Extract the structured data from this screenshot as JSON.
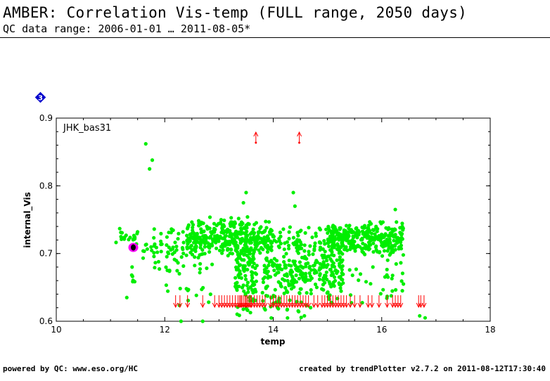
{
  "header": {
    "title": "AMBER: Correlation Vis-temp (FULL range, 2050 days)",
    "subtitle": "QC data range: 2006-01-01 … 2011-08-05*"
  },
  "badge": {
    "text": "3",
    "color": "#0000cc"
  },
  "footer": {
    "left": "powered by QC: www.eso.org/HC",
    "right": "created by trendPlotter v2.7.2 on 2011-08-12T17:30:40"
  },
  "chart_data": {
    "type": "scatter",
    "panel_label": "JHK_bas31",
    "xlabel": "temp",
    "ylabel": "internal_Vis",
    "xlim": [
      10,
      18
    ],
    "ylim": [
      0.6,
      0.9
    ],
    "x_ticks": [
      10,
      12,
      14,
      16,
      18
    ],
    "y_ticks": [
      0.6,
      0.7,
      0.8,
      0.9
    ],
    "grid": false,
    "colors": {
      "points": "#00ee00",
      "out_of_range": "#ff0000",
      "highlight": "#ff00ff",
      "latest": "#000000"
    },
    "highlight_point": {
      "x": 11.42,
      "y": 0.709
    },
    "upper_outliers_x": [
      13.68,
      14.48
    ],
    "lower_outliers_x": [
      12.2,
      12.28,
      12.42,
      12.7,
      12.92,
      13.0,
      13.05,
      13.1,
      13.15,
      13.2,
      13.25,
      13.3,
      13.35,
      13.38,
      13.4,
      13.42,
      13.45,
      13.48,
      13.5,
      13.52,
      13.55,
      13.58,
      13.6,
      13.65,
      13.7,
      13.75,
      13.8,
      13.85,
      13.95,
      14.0,
      14.05,
      14.1,
      14.15,
      14.2,
      14.25,
      14.3,
      14.35,
      14.4,
      14.45,
      14.5,
      14.55,
      14.6,
      14.65,
      14.75,
      14.82,
      14.9,
      14.95,
      15.0,
      15.05,
      15.1,
      15.15,
      15.2,
      15.25,
      15.3,
      15.35,
      15.42,
      15.5,
      15.6,
      15.75,
      15.82,
      15.95,
      16.1,
      16.2,
      16.25,
      16.3,
      16.35,
      16.68,
      16.72,
      16.78
    ],
    "clusters": [
      {
        "x": [
          11.1,
          11.5
        ],
        "y": [
          0.705,
          0.745
        ],
        "n": 22
      },
      {
        "x": [
          11.35,
          11.45
        ],
        "y": [
          0.635,
          0.7
        ],
        "n": 6
      },
      {
        "x": [
          11.6,
          11.85
        ],
        "y": [
          0.66,
          0.745
        ],
        "n": 14
      },
      {
        "x": [
          11.8,
          12.9
        ],
        "y": [
          0.665,
          0.75
        ],
        "n": 90
      },
      {
        "x": [
          12.0,
          12.9
        ],
        "y": [
          0.61,
          0.67
        ],
        "n": 12
      },
      {
        "x": [
          12.4,
          13.3
        ],
        "y": [
          0.695,
          0.755
        ],
        "n": 170
      },
      {
        "x": [
          13.3,
          13.7
        ],
        "y": [
          0.6,
          0.77
        ],
        "n": 160
      },
      {
        "x": [
          13.2,
          14.0
        ],
        "y": [
          0.695,
          0.75
        ],
        "n": 110
      },
      {
        "x": [
          13.8,
          14.7
        ],
        "y": [
          0.6,
          0.75
        ],
        "n": 230
      },
      {
        "x": [
          14.7,
          15.3
        ],
        "y": [
          0.62,
          0.745
        ],
        "n": 150
      },
      {
        "x": [
          15.0,
          15.6
        ],
        "y": [
          0.7,
          0.745
        ],
        "n": 150
      },
      {
        "x": [
          15.6,
          16.4
        ],
        "y": [
          0.695,
          0.75
        ],
        "n": 180
      },
      {
        "x": [
          15.4,
          16.4
        ],
        "y": [
          0.62,
          0.7
        ],
        "n": 30
      }
    ],
    "extra_points": [
      {
        "x": 11.65,
        "y": 0.862
      },
      {
        "x": 11.77,
        "y": 0.838
      },
      {
        "x": 11.72,
        "y": 0.825
      },
      {
        "x": 13.5,
        "y": 0.79
      },
      {
        "x": 13.45,
        "y": 0.775
      },
      {
        "x": 14.37,
        "y": 0.79
      },
      {
        "x": 14.4,
        "y": 0.77
      },
      {
        "x": 16.25,
        "y": 0.765
      },
      {
        "x": 11.3,
        "y": 0.635
      },
      {
        "x": 12.4,
        "y": 0.648
      },
      {
        "x": 16.4,
        "y": 0.655
      },
      {
        "x": 16.38,
        "y": 0.645
      },
      {
        "x": 16.7,
        "y": 0.608
      },
      {
        "x": 16.8,
        "y": 0.605
      },
      {
        "x": 12.3,
        "y": 0.6
      },
      {
        "x": 12.7,
        "y": 0.6
      }
    ]
  }
}
